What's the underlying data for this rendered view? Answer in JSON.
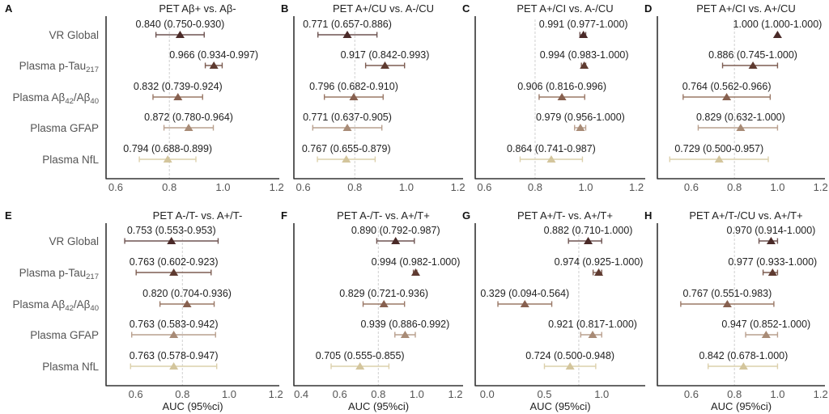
{
  "figure": {
    "xlabel": "AUC (95%ci)"
  },
  "row_labels": [
    {
      "main": "VR Global",
      "sub": "",
      "tail": ""
    },
    {
      "main": "Plasma p-Tau",
      "sub": "217",
      "tail": ""
    },
    {
      "main": "Plasma Aβ",
      "sub": "42",
      "tail": "/Aβ",
      "sub2": "40"
    },
    {
      "main": "Plasma GFAP",
      "sub": "",
      "tail": ""
    },
    {
      "main": "Plasma NfL",
      "sub": "",
      "tail": ""
    }
  ],
  "colors": {
    "markers": [
      "#4a2a28",
      "#5f3b31",
      "#87604f",
      "#a88b76",
      "#d3c59c"
    ],
    "bars": [
      "#6e5452",
      "#7d5d52",
      "#9a7867",
      "#b9a08e",
      "#dcd0ac"
    ],
    "axis": "#333333",
    "refline": "#d0d0d0",
    "text": "#222222",
    "label_text": "#555555"
  },
  "chart_data": [
    {
      "type": "forest",
      "panel": "A",
      "title": "PET Aβ+ vs. Aβ-",
      "xlim": [
        0.57,
        1.21
      ],
      "ticks": [
        "0.6",
        "0.8",
        "1.0",
        "1.2"
      ],
      "tick_values": [
        0.6,
        0.8,
        1.0,
        1.2
      ],
      "refline": 0.8,
      "xlabel": "",
      "points": [
        {
          "auc": 0.84,
          "lo": 0.75,
          "hi": 0.93,
          "label": "0.840 (0.750-0.930)"
        },
        {
          "auc": 0.966,
          "lo": 0.934,
          "hi": 0.997,
          "label": "0.966 (0.934-0.997)"
        },
        {
          "auc": 0.832,
          "lo": 0.739,
          "hi": 0.924,
          "label": "0.832 (0.739-0.924)"
        },
        {
          "auc": 0.872,
          "lo": 0.78,
          "hi": 0.964,
          "label": "0.872 (0.780-0.964)"
        },
        {
          "auc": 0.794,
          "lo": 0.688,
          "hi": 0.899,
          "label": "0.794 (0.688-0.899)"
        }
      ]
    },
    {
      "type": "forest",
      "panel": "B",
      "title": "PET A+/CU vs. A-/CU",
      "xlim": [
        0.57,
        1.22
      ],
      "ticks": [
        "0.6",
        "0.8",
        "1.0",
        "1.2"
      ],
      "tick_values": [
        0.6,
        0.8,
        1.0,
        1.2
      ],
      "refline": 0.8,
      "xlabel": "",
      "points": [
        {
          "auc": 0.771,
          "lo": 0.657,
          "hi": 0.886,
          "label": "0.771 (0.657-0.886)"
        },
        {
          "auc": 0.917,
          "lo": 0.842,
          "hi": 0.993,
          "label": "0.917 (0.842-0.993)"
        },
        {
          "auc": 0.796,
          "lo": 0.682,
          "hi": 0.91,
          "label": "0.796 (0.682-0.910)"
        },
        {
          "auc": 0.771,
          "lo": 0.637,
          "hi": 0.905,
          "label": "0.771 (0.637-0.905)"
        },
        {
          "auc": 0.767,
          "lo": 0.655,
          "hi": 0.879,
          "label": "0.767 (0.655-0.879)"
        }
      ]
    },
    {
      "type": "forest",
      "panel": "C",
      "title": "PET A+/CI vs. A-/CU",
      "xlim": [
        0.57,
        1.235
      ],
      "ticks": [
        "0.6",
        "0.8",
        "1.0",
        "1.2"
      ],
      "tick_values": [
        0.6,
        0.8,
        1.0,
        1.2
      ],
      "refline": 0.8,
      "xlabel": "",
      "points": [
        {
          "auc": 0.991,
          "lo": 0.977,
          "hi": 1.0,
          "label": "0.991 (0.977-1.000)"
        },
        {
          "auc": 0.994,
          "lo": 0.983,
          "hi": 1.0,
          "label": "0.994 (0.983-1.000)"
        },
        {
          "auc": 0.906,
          "lo": 0.816,
          "hi": 0.996,
          "label": "0.906 (0.816-0.996)"
        },
        {
          "auc": 0.979,
          "lo": 0.956,
          "hi": 1.0,
          "label": "0.979 (0.956-1.000)"
        },
        {
          "auc": 0.864,
          "lo": 0.741,
          "hi": 0.987,
          "label": "0.864 (0.741-0.987)"
        }
      ]
    },
    {
      "type": "forest",
      "panel": "D",
      "title": "PET A+/CI vs. A+/CU",
      "xlim": [
        0.45,
        1.22
      ],
      "ticks": [
        "0.6",
        "0.8",
        "1.0",
        "1.2"
      ],
      "tick_values": [
        0.6,
        0.8,
        1.0,
        1.2
      ],
      "refline": 0.8,
      "xlabel": "",
      "points": [
        {
          "auc": 1.0,
          "lo": 1.0,
          "hi": 1.0,
          "label": "1.000 (1.000-1.000)"
        },
        {
          "auc": 0.886,
          "lo": 0.745,
          "hi": 1.0,
          "label": "0.886 (0.745-1.000)"
        },
        {
          "auc": 0.764,
          "lo": 0.562,
          "hi": 0.966,
          "label": "0.764 (0.562-0.966)"
        },
        {
          "auc": 0.829,
          "lo": 0.632,
          "hi": 1.0,
          "label": "0.829 (0.632-1.000)"
        },
        {
          "auc": 0.729,
          "lo": 0.5,
          "hi": 0.957,
          "label": "0.729 (0.500-0.957)"
        }
      ]
    },
    {
      "type": "forest",
      "panel": "E",
      "title": "PET A-/T- vs. A+/T-",
      "xlim": [
        0.48,
        1.215
      ],
      "ticks": [
        "0.6",
        "0.8",
        "1.0",
        "1.2"
      ],
      "tick_values": [
        0.6,
        0.8,
        1.0,
        1.2
      ],
      "refline": 0.8,
      "xlabel": "AUC (95%ci)",
      "points": [
        {
          "auc": 0.753,
          "lo": 0.553,
          "hi": 0.953,
          "label": "0.753 (0.553-0.953)"
        },
        {
          "auc": 0.763,
          "lo": 0.602,
          "hi": 0.923,
          "label": "0.763 (0.602-0.923)"
        },
        {
          "auc": 0.82,
          "lo": 0.704,
          "hi": 0.936,
          "label": "0.820 (0.704-0.936)"
        },
        {
          "auc": 0.763,
          "lo": 0.583,
          "hi": 0.942,
          "label": "0.763 (0.583-0.942)"
        },
        {
          "auc": 0.763,
          "lo": 0.578,
          "hi": 0.947,
          "label": "0.763 (0.578-0.947)"
        }
      ]
    },
    {
      "type": "forest",
      "panel": "F",
      "title": "PET A-/T- vs. A+/T+",
      "xlim": [
        0.37,
        1.24
      ],
      "ticks": [
        "0.4",
        "0.6",
        "0.8",
        "1.0",
        "1.2"
      ],
      "tick_values": [
        0.4,
        0.6,
        0.8,
        1.0,
        1.2
      ],
      "refline": 0.8,
      "xlabel": "AUC (95%ci)",
      "points": [
        {
          "auc": 0.89,
          "lo": 0.792,
          "hi": 0.987,
          "label": "0.890 (0.792-0.987)"
        },
        {
          "auc": 0.994,
          "lo": 0.982,
          "hi": 1.0,
          "label": "0.994 (0.982-1.000)"
        },
        {
          "auc": 0.829,
          "lo": 0.721,
          "hi": 0.936,
          "label": "0.829 (0.721-0.936)"
        },
        {
          "auc": 0.939,
          "lo": 0.886,
          "hi": 0.992,
          "label": "0.939 (0.886-0.992)"
        },
        {
          "auc": 0.705,
          "lo": 0.555,
          "hi": 0.855,
          "label": "0.705 (0.555-0.855)"
        }
      ]
    },
    {
      "type": "forest",
      "panel": "G",
      "title": "PET A+/T- vs. A+/T+",
      "xlim": [
        -0.09,
        1.38
      ],
      "ticks": [
        "0.0",
        "0.5",
        "1.0"
      ],
      "tick_values": [
        0.0,
        0.5,
        1.0
      ],
      "refline": 0.8,
      "xlabel": "AUC (95%ci)",
      "points": [
        {
          "auc": 0.882,
          "lo": 0.71,
          "hi": 1.0,
          "label": "0.882 (0.710-1.000)"
        },
        {
          "auc": 0.974,
          "lo": 0.925,
          "hi": 1.0,
          "label": "0.974 (0.925-1.000)"
        },
        {
          "auc": 0.329,
          "lo": 0.094,
          "hi": 0.564,
          "label": "0.329 (0.094-0.564)"
        },
        {
          "auc": 0.921,
          "lo": 0.817,
          "hi": 1.0,
          "label": "0.921 (0.817-1.000)"
        },
        {
          "auc": 0.724,
          "lo": 0.5,
          "hi": 0.948,
          "label": "0.724 (0.500-0.948)"
        }
      ]
    },
    {
      "type": "forest",
      "panel": "H",
      "title": "PET A+/T-/CU vs. A+/T+",
      "xlim": [
        0.45,
        1.22
      ],
      "ticks": [
        "0.6",
        "0.8",
        "1.0",
        "1.2"
      ],
      "tick_values": [
        0.6,
        0.8,
        1.0,
        1.2
      ],
      "refline": 0.8,
      "xlabel": "AUC (95%ci)",
      "points": [
        {
          "auc": 0.97,
          "lo": 0.914,
          "hi": 1.0,
          "label": "0.970 (0.914-1.000)"
        },
        {
          "auc": 0.977,
          "lo": 0.933,
          "hi": 1.0,
          "label": "0.977 (0.933-1.000)"
        },
        {
          "auc": 0.767,
          "lo": 0.551,
          "hi": 0.983,
          "label": "0.767 (0.551-0.983)"
        },
        {
          "auc": 0.947,
          "lo": 0.852,
          "hi": 1.0,
          "label": "0.947 (0.852-1.000)"
        },
        {
          "auc": 0.842,
          "lo": 0.678,
          "hi": 1.0,
          "label": "0.842 (0.678-1.000)"
        }
      ]
    }
  ]
}
